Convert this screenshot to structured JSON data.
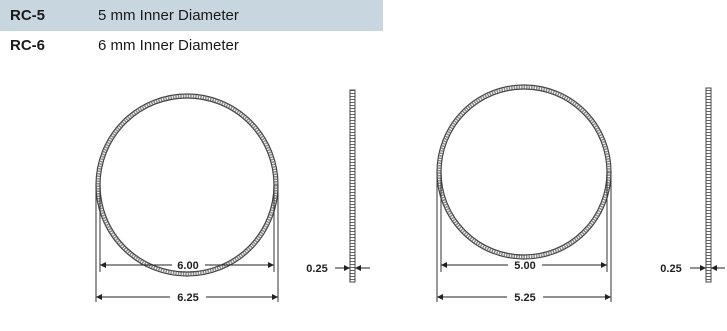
{
  "specs": [
    {
      "code": "RC-5",
      "description": "5 mm Inner Diameter"
    },
    {
      "code": "RC-6",
      "description": "6 mm Inner Diameter"
    }
  ],
  "drawings": {
    "left": {
      "inner_dimension": "6.00",
      "outer_dimension": "6.25",
      "thickness": "0.25"
    },
    "right": {
      "inner_dimension": "5.00",
      "outer_dimension": "5.25",
      "thickness": "0.25"
    }
  },
  "colors": {
    "header_shade": "#c8d6e0",
    "line": "#333333"
  }
}
